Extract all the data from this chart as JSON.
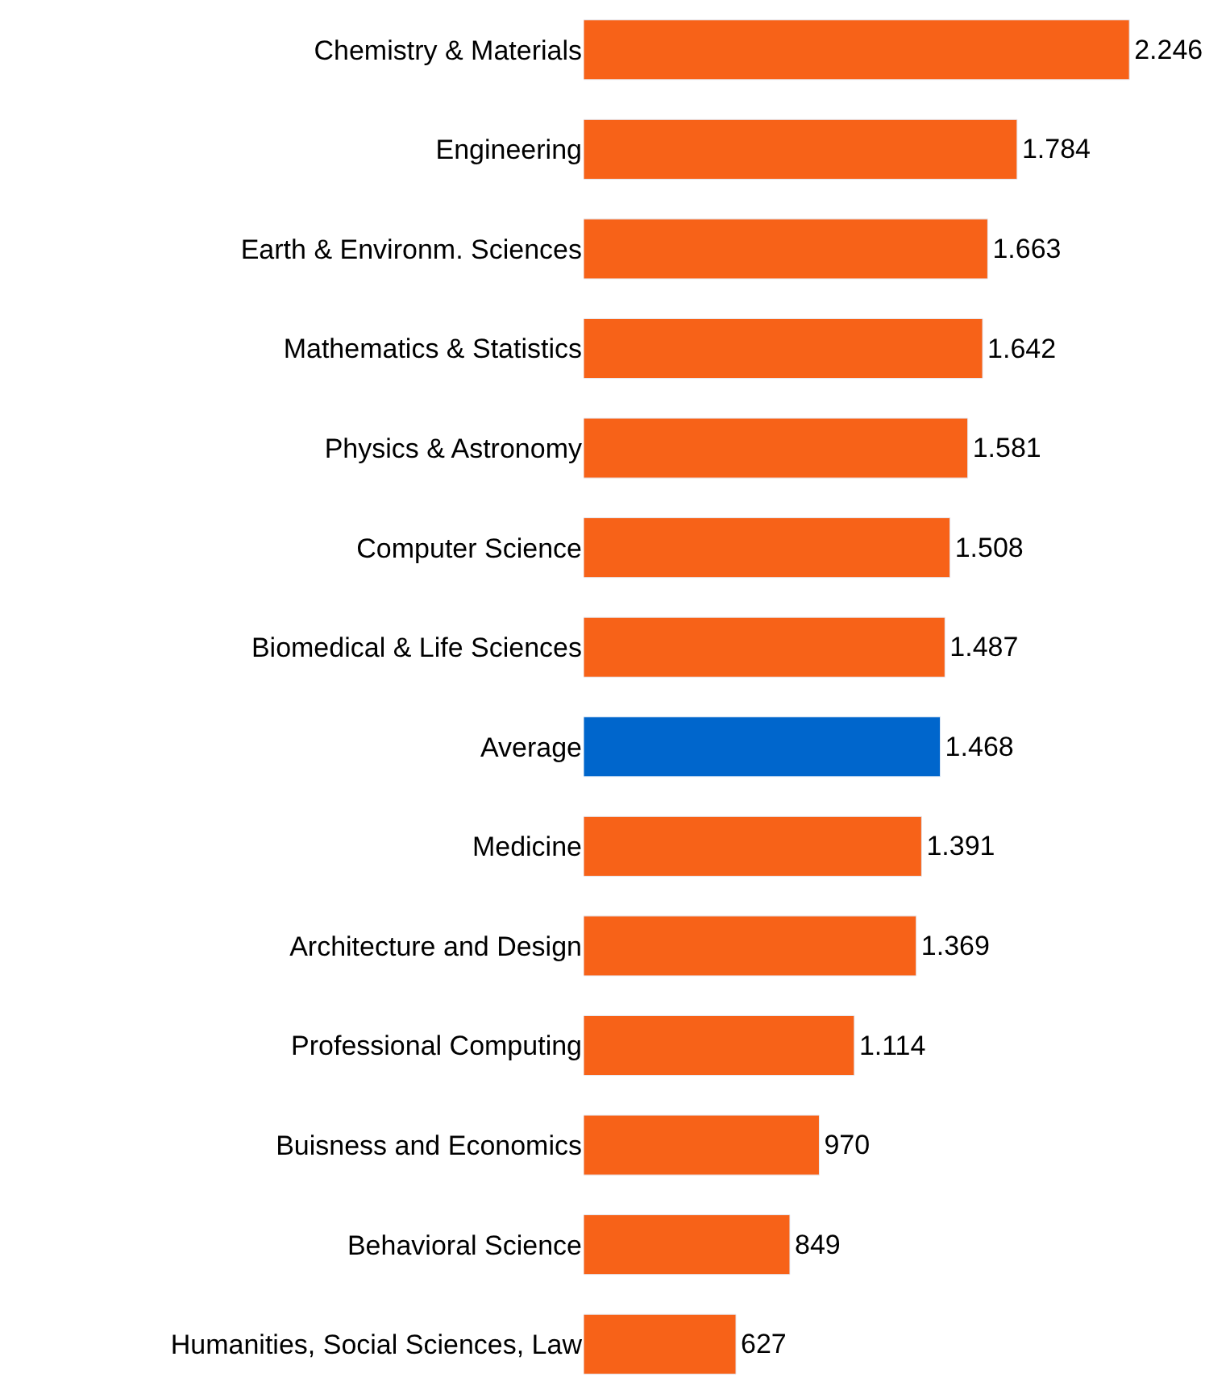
{
  "chart_data": {
    "type": "bar",
    "orientation": "horizontal",
    "categories": [
      "Chemistry & Materials",
      "Engineering",
      "Earth & Environm. Sciences",
      "Mathematics & Statistics",
      "Physics & Astronomy",
      "Computer Science",
      "Biomedical & Life Sciences",
      "Average",
      "Medicine",
      "Architecture and Design",
      "Professional Computing",
      "Buisness and Economics",
      "Behavioral Science",
      "Humanities, Social Sciences, Law"
    ],
    "values": [
      2246,
      1784,
      1663,
      1642,
      1581,
      1508,
      1487,
      1468,
      1391,
      1369,
      1114,
      970,
      849,
      627
    ],
    "value_labels": [
      "2.246",
      "1.784",
      "1.663",
      "1.642",
      "1.581",
      "1.508",
      "1.487",
      "1.468",
      "1.391",
      "1.369",
      "1.114",
      "970",
      "849",
      "627"
    ],
    "colors": [
      "#f76218",
      "#f76218",
      "#f76218",
      "#f76218",
      "#f76218",
      "#f76218",
      "#f76218",
      "#0066cc",
      "#f76218",
      "#f76218",
      "#f76218",
      "#f76218",
      "#f76218",
      "#f76218"
    ],
    "xlim": [
      0,
      2660
    ],
    "tick_labels": "y"
  }
}
